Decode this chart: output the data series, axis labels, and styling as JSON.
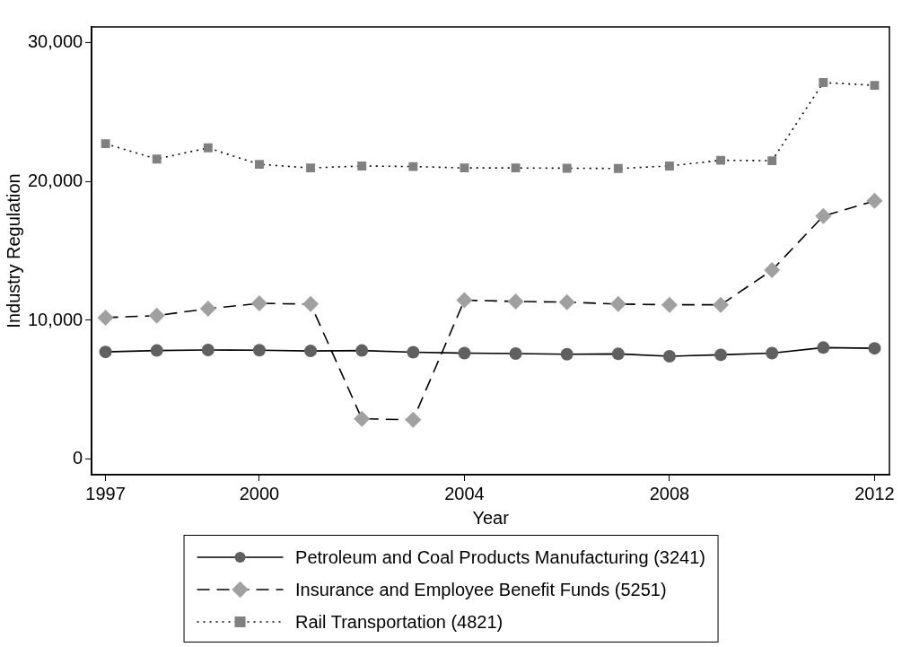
{
  "chart_data": {
    "type": "line",
    "xlabel": "Year",
    "ylabel": "Industry Regulation",
    "x": [
      1997,
      1998,
      1999,
      2000,
      2001,
      2002,
      2003,
      2004,
      2005,
      2006,
      2007,
      2008,
      2009,
      2010,
      2011,
      2012
    ],
    "series": [
      {
        "name": "Petroleum and Coal Products Manufacturing (3241)",
        "color": "#606060",
        "marker": "circle",
        "line_style": "solid",
        "values": [
          7730,
          7830,
          7870,
          7850,
          7800,
          7830,
          7710,
          7640,
          7610,
          7560,
          7590,
          7420,
          7520,
          7640,
          8040,
          7990
        ]
      },
      {
        "name": "Insurance and Employee Benefit Funds (5251)",
        "color": "#a0a0a0",
        "marker": "diamond",
        "line_style": "dashed",
        "values": [
          10200,
          10340,
          10840,
          11220,
          11170,
          2920,
          2850,
          11450,
          11360,
          11310,
          11170,
          11120,
          11120,
          13610,
          17500,
          18590
        ]
      },
      {
        "name": "Rail Transportation (4821)",
        "color": "#808080",
        "marker": "square",
        "line_style": "dotted",
        "values": [
          22700,
          21600,
          22400,
          21220,
          20960,
          21100,
          21060,
          20960,
          20960,
          20940,
          20920,
          21100,
          21510,
          21480,
          27100,
          26900
        ]
      }
    ],
    "xlim": [
      1996.73,
      2012.29
    ],
    "xticks": [
      1997,
      2000,
      2004,
      2008,
      2012
    ],
    "ylim": [
      -1100,
      31100
    ],
    "yticks": [
      0,
      {
        "value": 10000,
        "label": "10,000"
      },
      {
        "value": 20000,
        "label": "20,000"
      },
      {
        "value": 30000,
        "label": "30,000"
      }
    ],
    "grid": false,
    "legend": "bottom"
  }
}
